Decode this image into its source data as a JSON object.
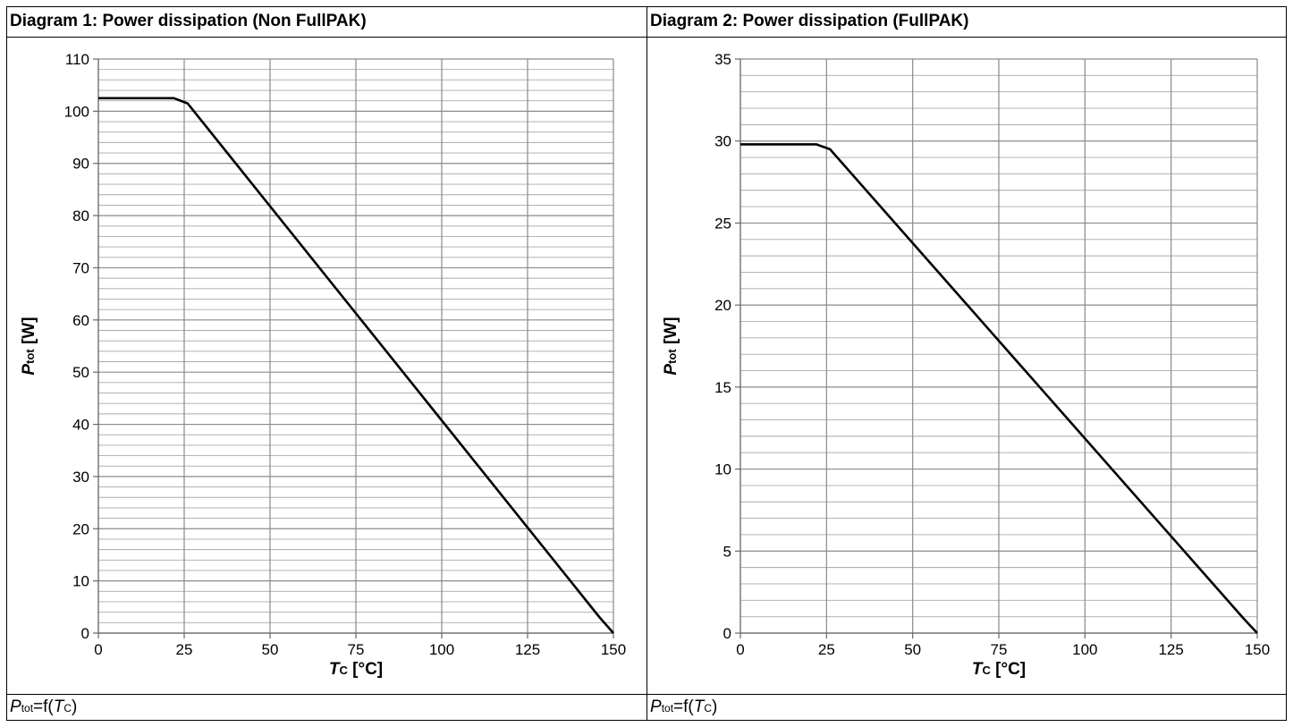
{
  "chart_data": [
    {
      "type": "line",
      "title": "Diagram 1: Power dissipation (Non FullPAK)",
      "xlabel_main": "T",
      "xlabel_sub": "C",
      "xlabel_unit": " [°C]",
      "ylabel_main": "P",
      "ylabel_sub": "tot",
      "ylabel_unit": " [W]",
      "xlim": [
        0,
        150
      ],
      "ylim": [
        0,
        110
      ],
      "xticks": [
        "0",
        "25",
        "50",
        "75",
        "100",
        "125",
        "150"
      ],
      "yticks": [
        "0",
        "10",
        "20",
        "30",
        "40",
        "50",
        "60",
        "70",
        "80",
        "90",
        "100",
        "110"
      ],
      "grid": true,
      "series": [
        {
          "x": [
            0,
            22,
            26,
            146,
            150
          ],
          "y": [
            102.5,
            102.5,
            101.5,
            3,
            0
          ]
        }
      ],
      "caption_main1": "P",
      "caption_sub1": "tot",
      "caption_mid": "=f(",
      "caption_main2": "T",
      "caption_sub2": "C",
      "caption_end": ")"
    },
    {
      "type": "line",
      "title": "Diagram 2: Power dissipation (FullPAK)",
      "xlabel_main": "T",
      "xlabel_sub": "C",
      "xlabel_unit": " [°C]",
      "ylabel_main": "P",
      "ylabel_sub": "tot",
      "ylabel_unit": " [W]",
      "xlim": [
        0,
        150
      ],
      "ylim": [
        0,
        35
      ],
      "xticks": [
        "0",
        "25",
        "50",
        "75",
        "100",
        "125",
        "150"
      ],
      "yticks": [
        "0",
        "5",
        "10",
        "15",
        "20",
        "25",
        "30",
        "35"
      ],
      "grid": true,
      "series": [
        {
          "x": [
            0,
            22,
            26,
            146,
            150
          ],
          "y": [
            29.8,
            29.8,
            29.5,
            0.9,
            0
          ]
        }
      ],
      "caption_main1": "P",
      "caption_sub1": "tot",
      "caption_mid": "=f(",
      "caption_main2": "T",
      "caption_sub2": "C",
      "caption_end": ")"
    }
  ]
}
